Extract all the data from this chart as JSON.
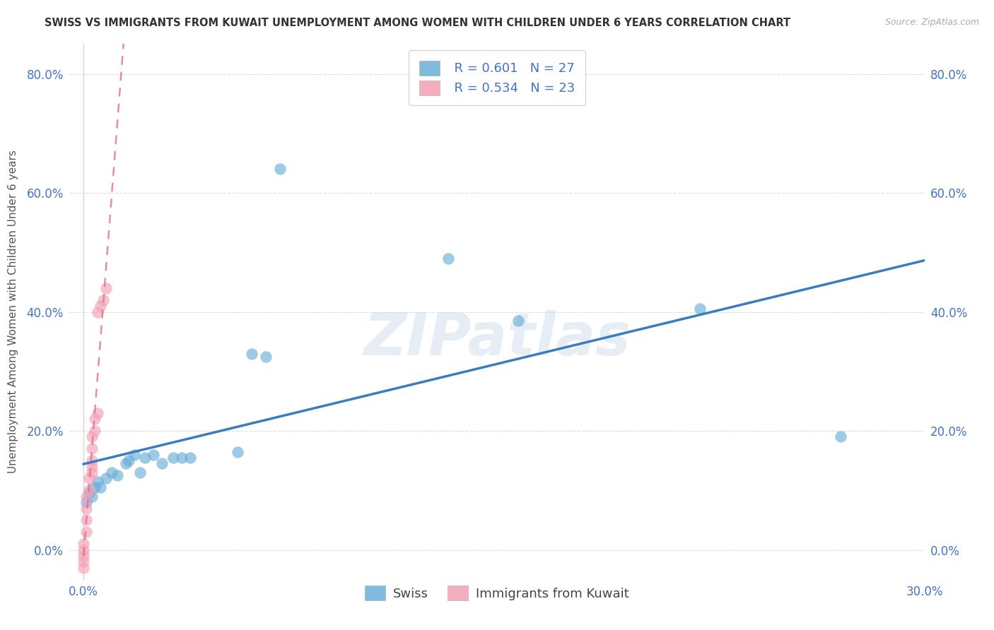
{
  "title": "SWISS VS IMMIGRANTS FROM KUWAIT UNEMPLOYMENT AMONG WOMEN WITH CHILDREN UNDER 6 YEARS CORRELATION CHART",
  "source": "Source: ZipAtlas.com",
  "ylabel": "Unemployment Among Women with Children Under 6 years",
  "background_color": "#ffffff",
  "swiss_color": "#6aaed6",
  "kuwait_color": "#f4a0b5",
  "swiss_line_color": "#3a7dbf",
  "kuwait_line_color": "#e07090",
  "watermark_text": "ZIPatlas",
  "legend_R_swiss": "R = 0.601",
  "legend_N_swiss": "N = 27",
  "legend_R_kuwait": "R = 0.534",
  "legend_N_kuwait": "N = 23",
  "swiss_scatter_x": [
    0.001,
    0.002,
    0.003,
    0.004,
    0.005,
    0.006,
    0.008,
    0.01,
    0.012,
    0.015,
    0.016,
    0.018,
    0.02,
    0.022,
    0.025,
    0.028,
    0.032,
    0.035,
    0.038,
    0.055,
    0.06,
    0.065,
    0.07,
    0.13,
    0.155,
    0.22,
    0.27
  ],
  "swiss_scatter_y": [
    0.08,
    0.095,
    0.09,
    0.105,
    0.115,
    0.105,
    0.12,
    0.13,
    0.125,
    0.145,
    0.15,
    0.16,
    0.13,
    0.155,
    0.16,
    0.145,
    0.155,
    0.155,
    0.155,
    0.165,
    0.33,
    0.325,
    0.64,
    0.49,
    0.385,
    0.405,
    0.19
  ],
  "kuwait_scatter_x": [
    0.0,
    0.0,
    0.0,
    0.0,
    0.0,
    0.001,
    0.001,
    0.001,
    0.001,
    0.002,
    0.002,
    0.003,
    0.003,
    0.003,
    0.003,
    0.003,
    0.004,
    0.004,
    0.005,
    0.005,
    0.006,
    0.007,
    0.008
  ],
  "kuwait_scatter_y": [
    -0.03,
    -0.02,
    -0.01,
    0.0,
    0.01,
    0.03,
    0.05,
    0.07,
    0.09,
    0.1,
    0.12,
    0.13,
    0.14,
    0.15,
    0.17,
    0.19,
    0.2,
    0.22,
    0.23,
    0.4,
    0.41,
    0.42,
    0.44
  ],
  "xlim": [
    -0.005,
    0.3
  ],
  "ylim": [
    -0.05,
    0.85
  ],
  "yticks": [
    0.0,
    0.2,
    0.4,
    0.6,
    0.8
  ],
  "ytick_labels": [
    "0.0%",
    "20.0%",
    "40.0%",
    "60.0%",
    "80.0%"
  ],
  "xticks": [
    0.0,
    0.05,
    0.1,
    0.15,
    0.2,
    0.25,
    0.3
  ],
  "xtick_labels": [
    "0.0%",
    "",
    "",
    "",
    "",
    "",
    "30.0%"
  ],
  "grid_color": "#dddddd",
  "title_fontsize": 10.5,
  "source_fontsize": 9,
  "tick_fontsize": 12,
  "ylabel_fontsize": 11
}
